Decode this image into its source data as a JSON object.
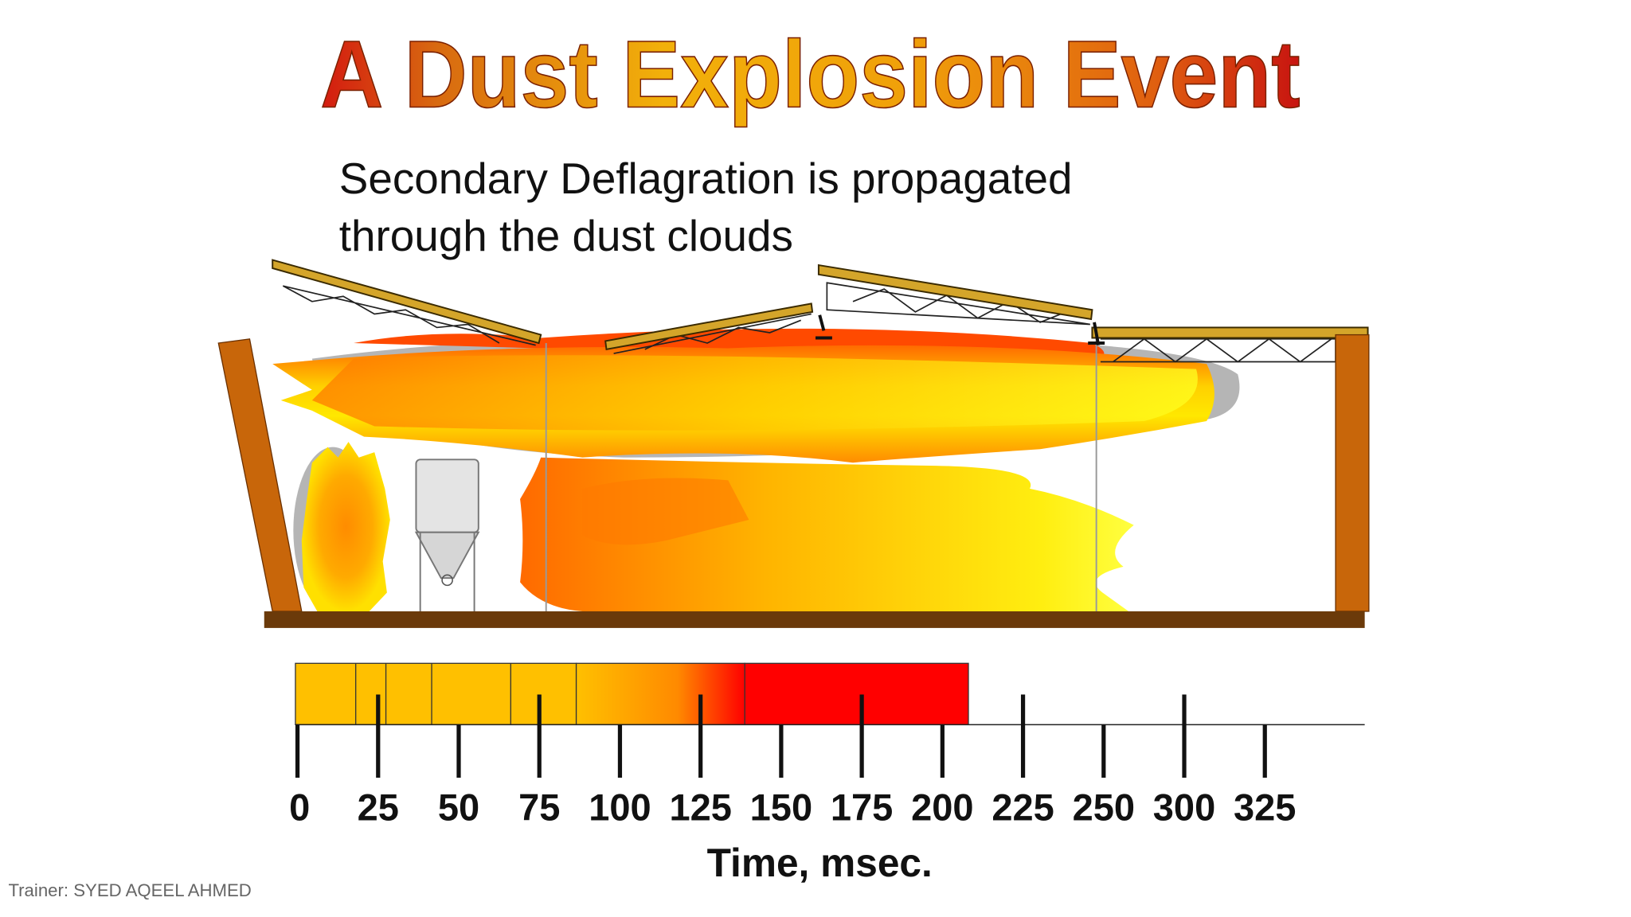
{
  "header": {
    "title": "A Dust Explosion Event",
    "subtitle_lines": [
      "Secondary Deflagration is propagated",
      "through the dust clouds"
    ]
  },
  "timeline": {
    "ticks": [
      0,
      25,
      50,
      75,
      100,
      125,
      150,
      175,
      200,
      225,
      250,
      300,
      325
    ],
    "axis_label": "Time, msec."
  },
  "footer": {
    "trainer": "Trainer: SYED AQEEL AHMED"
  }
}
